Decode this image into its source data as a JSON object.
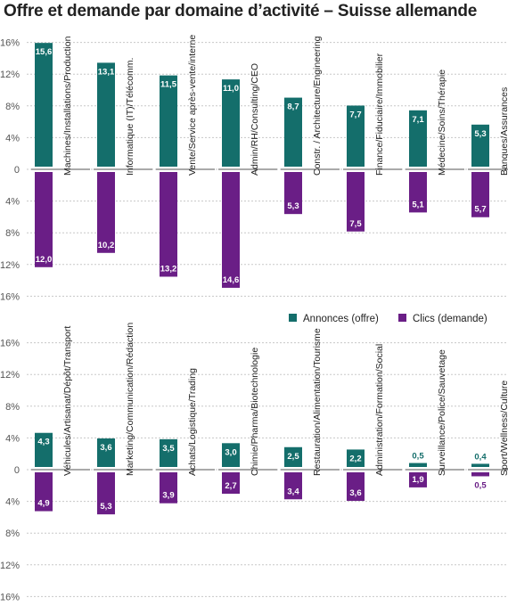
{
  "title": "Offre et demande par domaine d’activité – Suisse allemande",
  "colors": {
    "supply": "#146e6b",
    "demand": "#6a1e86",
    "grid": "#c8c8c8",
    "gap": "#ffffff"
  },
  "chart_data": [
    {
      "type": "bar",
      "panel": "top",
      "categories": [
        "Machines/Installations/Production",
        "Informatique (IT)/Télécomm.",
        "Vente/Service après-vente/interne",
        "Admin/RH/Consulting/CEO",
        "Constr. / Architecture/Engineering",
        "Finance/Fiduciaire/Immobilier",
        "Médecine/Soins/Thérapie",
        "Banques/Assurances"
      ],
      "series": [
        {
          "name": "Annonces (offre)",
          "values": [
            15.6,
            13.1,
            11.5,
            11.0,
            8.7,
            7.7,
            7.1,
            5.3
          ],
          "labels": [
            "15,6",
            "13,1",
            "11,5",
            "11,0",
            "8,7",
            "7,7",
            "7,1",
            "5,3"
          ]
        },
        {
          "name": "Clics (demande)",
          "values": [
            12.0,
            10.2,
            13.2,
            14.6,
            5.3,
            7.5,
            5.1,
            5.7
          ],
          "labels": [
            "12,0",
            "10,2",
            "13,2",
            "14,6",
            "5,3",
            "7,5",
            "5,1",
            "5,7"
          ]
        }
      ],
      "yticks": [
        "16%",
        "12%",
        "8%",
        "4%",
        "0",
        "4%",
        "8%",
        "12%",
        "16%"
      ],
      "ylim": [
        -16,
        16
      ],
      "grid": true,
      "legend_position": "bottom-right"
    },
    {
      "type": "bar",
      "panel": "bottom",
      "categories": [
        "Véhicules/Artisanat/Dépôt/Transport",
        "Marketing/Communication/Rédaction",
        "Achats/Logistique/Trading",
        "Chimie/Pharma/Biotechnologie",
        "Restauration/Alimentation/Tourisme",
        "Administration/Formation/Social",
        "Surveillance/Police/Sauvetage",
        "Sport/Wellness/Culture"
      ],
      "series": [
        {
          "name": "Annonces (offre)",
          "values": [
            4.3,
            3.6,
            3.5,
            3.0,
            2.5,
            2.2,
            0.5,
            0.4
          ],
          "labels": [
            "4,3",
            "3,6",
            "3,5",
            "3,0",
            "2,5",
            "2,2",
            "0,5",
            "0,4"
          ]
        },
        {
          "name": "Clics (demande)",
          "values": [
            4.9,
            5.3,
            3.9,
            2.7,
            3.4,
            3.6,
            1.9,
            0.5
          ],
          "labels": [
            "4,9",
            "5,3",
            "3,9",
            "2,7",
            "3,4",
            "3,6",
            "1,9",
            "0,5"
          ]
        }
      ],
      "yticks": [
        "16%",
        "12%",
        "8%",
        "4%",
        "0",
        "4%",
        "8%",
        "12%",
        "16%"
      ],
      "ylim": [
        -16,
        16
      ],
      "grid": true
    }
  ]
}
